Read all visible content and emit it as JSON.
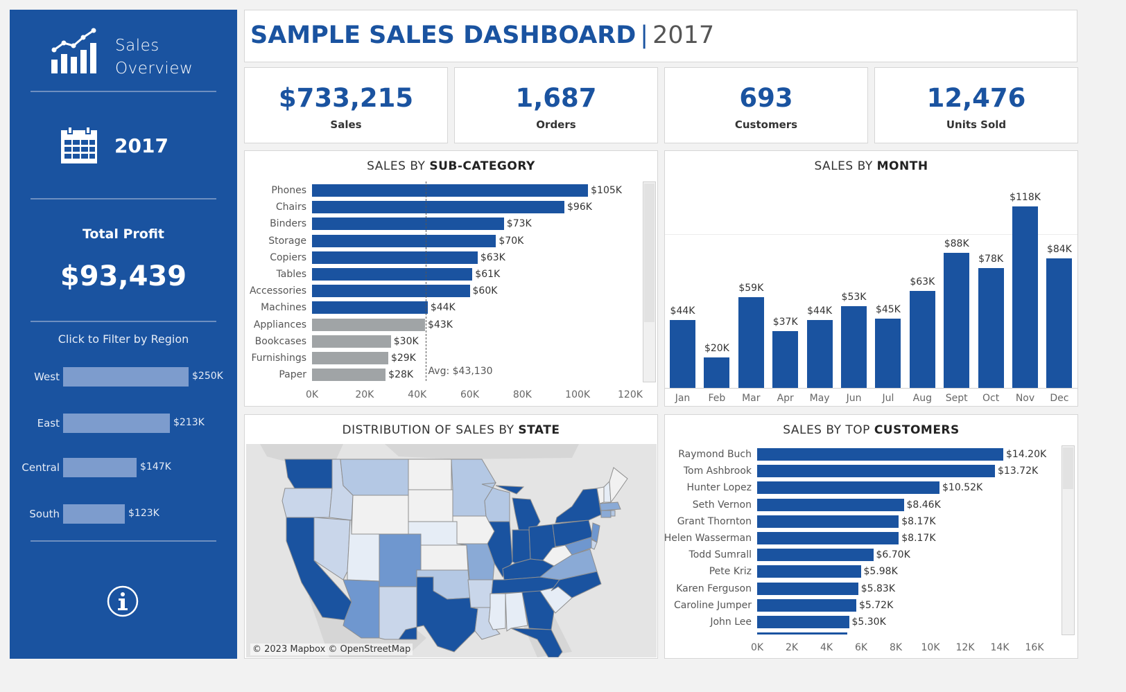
{
  "sidebar": {
    "title_line1": "Sales",
    "title_line2": "Overview",
    "year": "2017",
    "profit_label": "Total Profit",
    "profit_value": "$93,439",
    "filter_label": "Click to Filter by Region",
    "regions": [
      {
        "label": "West",
        "value_label": "$250K",
        "value": 250
      },
      {
        "label": "East",
        "value_label": "$213K",
        "value": 213
      },
      {
        "label": "Central",
        "value_label": "$147K",
        "value": 147
      },
      {
        "label": "South",
        "value_label": "$123K",
        "value": 123
      }
    ],
    "icons": [
      "chart-trend-icon",
      "calendar-icon",
      "info-icon"
    ]
  },
  "header": {
    "title": "SAMPLE SALES DASHBOARD",
    "separator": "|",
    "year": "2017"
  },
  "kpis": [
    {
      "value": "$733,215",
      "label": "Sales"
    },
    {
      "value": "1,687",
      "label": "Orders"
    },
    {
      "value": "693",
      "label": "Customers"
    },
    {
      "value": "12,476",
      "label": "Units Sold"
    }
  ],
  "subcategory_panel": {
    "title_prefix": "SALES BY ",
    "title_strong": "SUB-CATEGORY",
    "avg_label": "Avg: $43,130"
  },
  "month_panel": {
    "title_prefix": "SALES BY ",
    "title_strong": "MONTH"
  },
  "map_panel": {
    "title_prefix": "DISTRIBUTION OF SALES BY ",
    "title_strong": "STATE",
    "attribution": "© 2023 Mapbox © OpenStreetMap"
  },
  "customer_panel": {
    "title_prefix": "SALES BY TOP ",
    "title_strong": "CUSTOMERS"
  },
  "colors": {
    "brand_blue": "#1a53a0",
    "bar_blue": "#1a53a0",
    "below_avg_gray": "#a0a4a6",
    "region_bar": "#7d9ccd"
  },
  "chart_data": [
    {
      "type": "bar",
      "orientation": "horizontal",
      "title": "SALES BY SUB-CATEGORY",
      "categories": [
        "Phones",
        "Chairs",
        "Binders",
        "Storage",
        "Copiers",
        "Tables",
        "Accessories",
        "Machines",
        "Appliances",
        "Bookcases",
        "Furnishings",
        "Paper"
      ],
      "values": [
        105000,
        96000,
        73000,
        70000,
        63000,
        61000,
        60000,
        44000,
        43000,
        30000,
        29000,
        28000
      ],
      "labels": [
        "$105K",
        "$96K",
        "$73K",
        "$70K",
        "$63K",
        "$61K",
        "$60K",
        "$44K",
        "$43K",
        "$30K",
        "$29K",
        "$28K"
      ],
      "reference_line": {
        "label": "Avg: $43,130",
        "value": 43130
      },
      "xticks": [
        "0K",
        "20K",
        "40K",
        "60K",
        "80K",
        "100K",
        "120K"
      ],
      "xlim": [
        0,
        120000
      ],
      "grid": false
    },
    {
      "type": "bar",
      "title": "SALES BY MONTH",
      "categories": [
        "Jan",
        "Feb",
        "Mar",
        "Apr",
        "May",
        "Jun",
        "Jul",
        "Aug",
        "Sept",
        "Oct",
        "Nov",
        "Dec"
      ],
      "values": [
        44000,
        20000,
        59000,
        37000,
        44000,
        53000,
        45000,
        63000,
        88000,
        78000,
        118000,
        84000
      ],
      "labels": [
        "$44K",
        "$20K",
        "$59K",
        "$37K",
        "$44K",
        "$53K",
        "$45K",
        "$63K",
        "$88K",
        "$78K",
        "$118K",
        "$84K"
      ],
      "ylim": [
        0,
        118000
      ]
    },
    {
      "type": "bar",
      "orientation": "horizontal",
      "title": "SALES BY TOP CUSTOMERS",
      "categories": [
        "Raymond Buch",
        "Tom Ashbrook",
        "Hunter Lopez",
        "Seth Vernon",
        "Grant Thornton",
        "Helen Wasserman",
        "Todd Sumrall",
        "Pete Kriz",
        "Karen Ferguson",
        "Caroline Jumper",
        "John Lee"
      ],
      "values": [
        14200,
        13720,
        10520,
        8460,
        8170,
        8170,
        6700,
        5980,
        5830,
        5720,
        5300
      ],
      "labels": [
        "$14.20K",
        "$13.72K",
        "$10.52K",
        "$8.46K",
        "$8.17K",
        "$8.17K",
        "$6.70K",
        "$5.98K",
        "$5.83K",
        "$5.72K",
        "$5.30K"
      ],
      "xticks": [
        "0K",
        "2K",
        "4K",
        "6K",
        "8K",
        "10K",
        "12K",
        "14K",
        "16K"
      ],
      "xlim": [
        0,
        16000
      ]
    }
  ]
}
